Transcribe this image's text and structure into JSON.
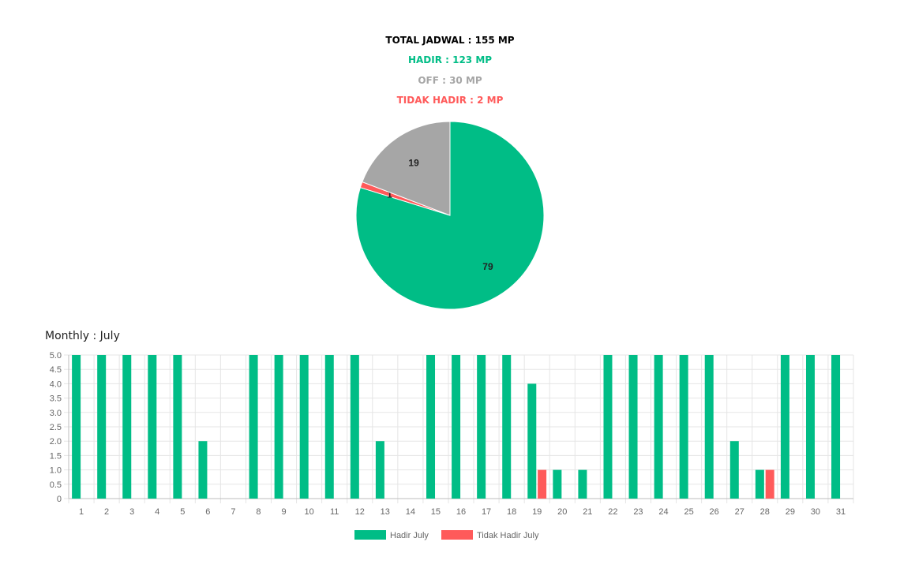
{
  "summary": {
    "total": "TOTAL JADWAL : 155 MP",
    "hadir": "HADIR : 123 MP",
    "off": "OFF : 30 MP",
    "tidak_hadir": "TIDAK HADIR : 2 MP"
  },
  "colors": {
    "hadir": "#00bd86",
    "off": "#a6a6a6",
    "tidak_hadir": "#ff5a5a",
    "grid": "#e5e5e5"
  },
  "chart_data": [
    {
      "type": "pie",
      "slices": [
        {
          "name": "Hadir",
          "value": 79,
          "color": "#00bd86"
        },
        {
          "name": "Tidak Hadir",
          "value": 1,
          "color": "#ff5a5a"
        },
        {
          "name": "Off",
          "value": 19,
          "color": "#a6a6a6"
        }
      ]
    },
    {
      "type": "bar",
      "title": "Monthly : July",
      "categories": [
        "1",
        "2",
        "3",
        "4",
        "5",
        "6",
        "7",
        "8",
        "9",
        "10",
        "11",
        "12",
        "13",
        "14",
        "15",
        "16",
        "17",
        "18",
        "19",
        "20",
        "21",
        "22",
        "23",
        "24",
        "25",
        "26",
        "27",
        "28",
        "29",
        "30",
        "31"
      ],
      "series": [
        {
          "name": "Hadir July",
          "color": "#00bd86",
          "values": [
            5,
            5,
            5,
            5,
            5,
            2,
            0,
            5,
            5,
            5,
            5,
            5,
            2,
            0,
            5,
            5,
            5,
            5,
            4,
            1,
            1,
            5,
            5,
            5,
            5,
            5,
            2,
            1,
            5,
            5,
            5
          ]
        },
        {
          "name": "Tidak Hadir July",
          "color": "#ff5a5a",
          "values": [
            0,
            0,
            0,
            0,
            0,
            0,
            0,
            0,
            0,
            0,
            0,
            0,
            0,
            0,
            0,
            0,
            0,
            0,
            1,
            0,
            0,
            0,
            0,
            0,
            0,
            0,
            0,
            1,
            0,
            0,
            0
          ]
        }
      ],
      "ylim": [
        0,
        5
      ],
      "yticks": [
        "0",
        "0.5",
        "1.0",
        "1.5",
        "2.0",
        "2.5",
        "3.0",
        "3.5",
        "4.0",
        "4.5",
        "5.0"
      ],
      "grid": true,
      "legend": "bottom"
    }
  ]
}
